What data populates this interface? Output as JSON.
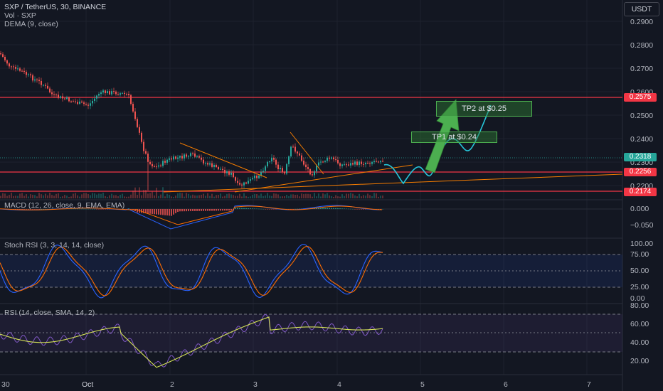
{
  "header": {
    "title": "SXP / TetherUS, 30, BINANCE",
    "volume": "Vol · SXP",
    "dema": "DEMA (9, close)",
    "currency": "USDT"
  },
  "price_scale": [
    "0.2900",
    "0.2800",
    "0.2700",
    "0.2600",
    "0.2500",
    "0.2400",
    "0.2300",
    "0.2200"
  ],
  "price_tags": {
    "upper_resistance": "0.2575",
    "current": "0.2318",
    "mid_support": "0.2256",
    "lower_support": "0.2174"
  },
  "annotations": {
    "tp1": "TP1 at $0.24",
    "tp2": "TP2 at $0.25"
  },
  "macd": {
    "label": "MACD (12, 26, close, 9, EMA, EMA)",
    "scale": [
      "0.000",
      "−0.050"
    ]
  },
  "stoch_rsi": {
    "label": "Stoch RSI (3, 3, 14, 14, close)",
    "scale": [
      "100.00",
      "75.00",
      "50.00",
      "25.00",
      "0.00"
    ]
  },
  "rsi": {
    "label": "RSI (14, close, SMA, 14, 2)",
    "scale": [
      "80.00",
      "60.00",
      "40.00",
      "20.00"
    ]
  },
  "time_axis": [
    "30",
    "Oct",
    "2",
    "3",
    "4",
    "5",
    "6",
    "7"
  ],
  "colors": {
    "background": "#131722",
    "bull": "#26a69a",
    "bear": "#ef5350",
    "resistance": "#f23645",
    "trendline": "#f57c00",
    "projection": "#26c6da",
    "arrow": "#4caf50",
    "macd_line": "#2962ff",
    "signal_line": "#ff6d00",
    "stoch_k": "#2962ff",
    "stoch_d": "#ff6d00",
    "rsi_line": "#7e57c2",
    "rsi_ma": "#d4e157"
  }
}
